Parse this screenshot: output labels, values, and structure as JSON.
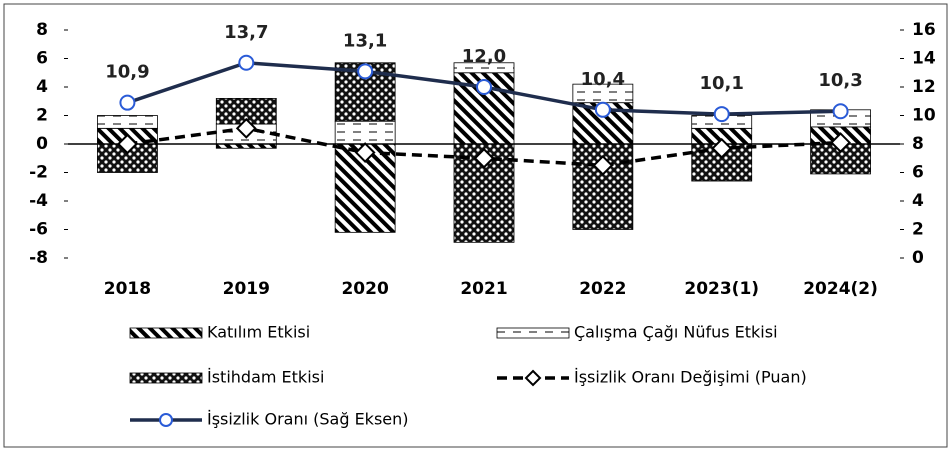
{
  "chart_data": {
    "type": "bar",
    "categories": [
      "2018",
      "2019",
      "2020",
      "2021",
      "2022",
      "2023(1)",
      "2024(2)"
    ],
    "series": [
      {
        "name": "Katılım Etkisi",
        "type": "bar",
        "pattern": "diagonal",
        "color": "#000000",
        "values": [
          1.1,
          -0.3,
          -6.2,
          5.0,
          2.9,
          1.1,
          1.2
        ]
      },
      {
        "name": "Çalışma Çağı Nüfus Etkisi",
        "type": "bar",
        "pattern": "dashes",
        "color": "#000000",
        "values": [
          0.9,
          1.4,
          1.6,
          0.7,
          1.3,
          0.9,
          1.2
        ]
      },
      {
        "name": "İstihdam Etkisi",
        "type": "bar",
        "pattern": "checks",
        "color": "#000000",
        "values": [
          -2.0,
          1.8,
          4.1,
          -6.9,
          -6.0,
          -2.6,
          -2.1
        ]
      },
      {
        "name": "İşsizlik Oranı Değişimi (Puan)",
        "type": "line",
        "dashed": true,
        "marker": "diamond",
        "color": "#000000",
        "values": [
          0.0,
          1.1,
          -0.6,
          -1.0,
          -1.5,
          -0.3,
          0.1
        ]
      },
      {
        "name": "İşsizlik Oranı (Sağ Eksen)",
        "type": "line",
        "axis": "y2",
        "marker": "circle",
        "color": "#1f2d4d",
        "values": [
          10.9,
          13.7,
          13.1,
          12.0,
          10.4,
          10.1,
          10.3
        ],
        "value_labels": [
          "10,9",
          "13,7",
          "13,1",
          "12,0",
          "10,4",
          "10,1",
          "10,3"
        ]
      }
    ],
    "ylim": [
      -8,
      8
    ],
    "yticks": [
      -8,
      -6,
      -4,
      -2,
      0,
      2,
      4,
      6,
      8
    ],
    "y2lim": [
      0,
      16
    ],
    "y2ticks": [
      0,
      2,
      4,
      6,
      8,
      10,
      12,
      14,
      16
    ],
    "grid": false
  }
}
